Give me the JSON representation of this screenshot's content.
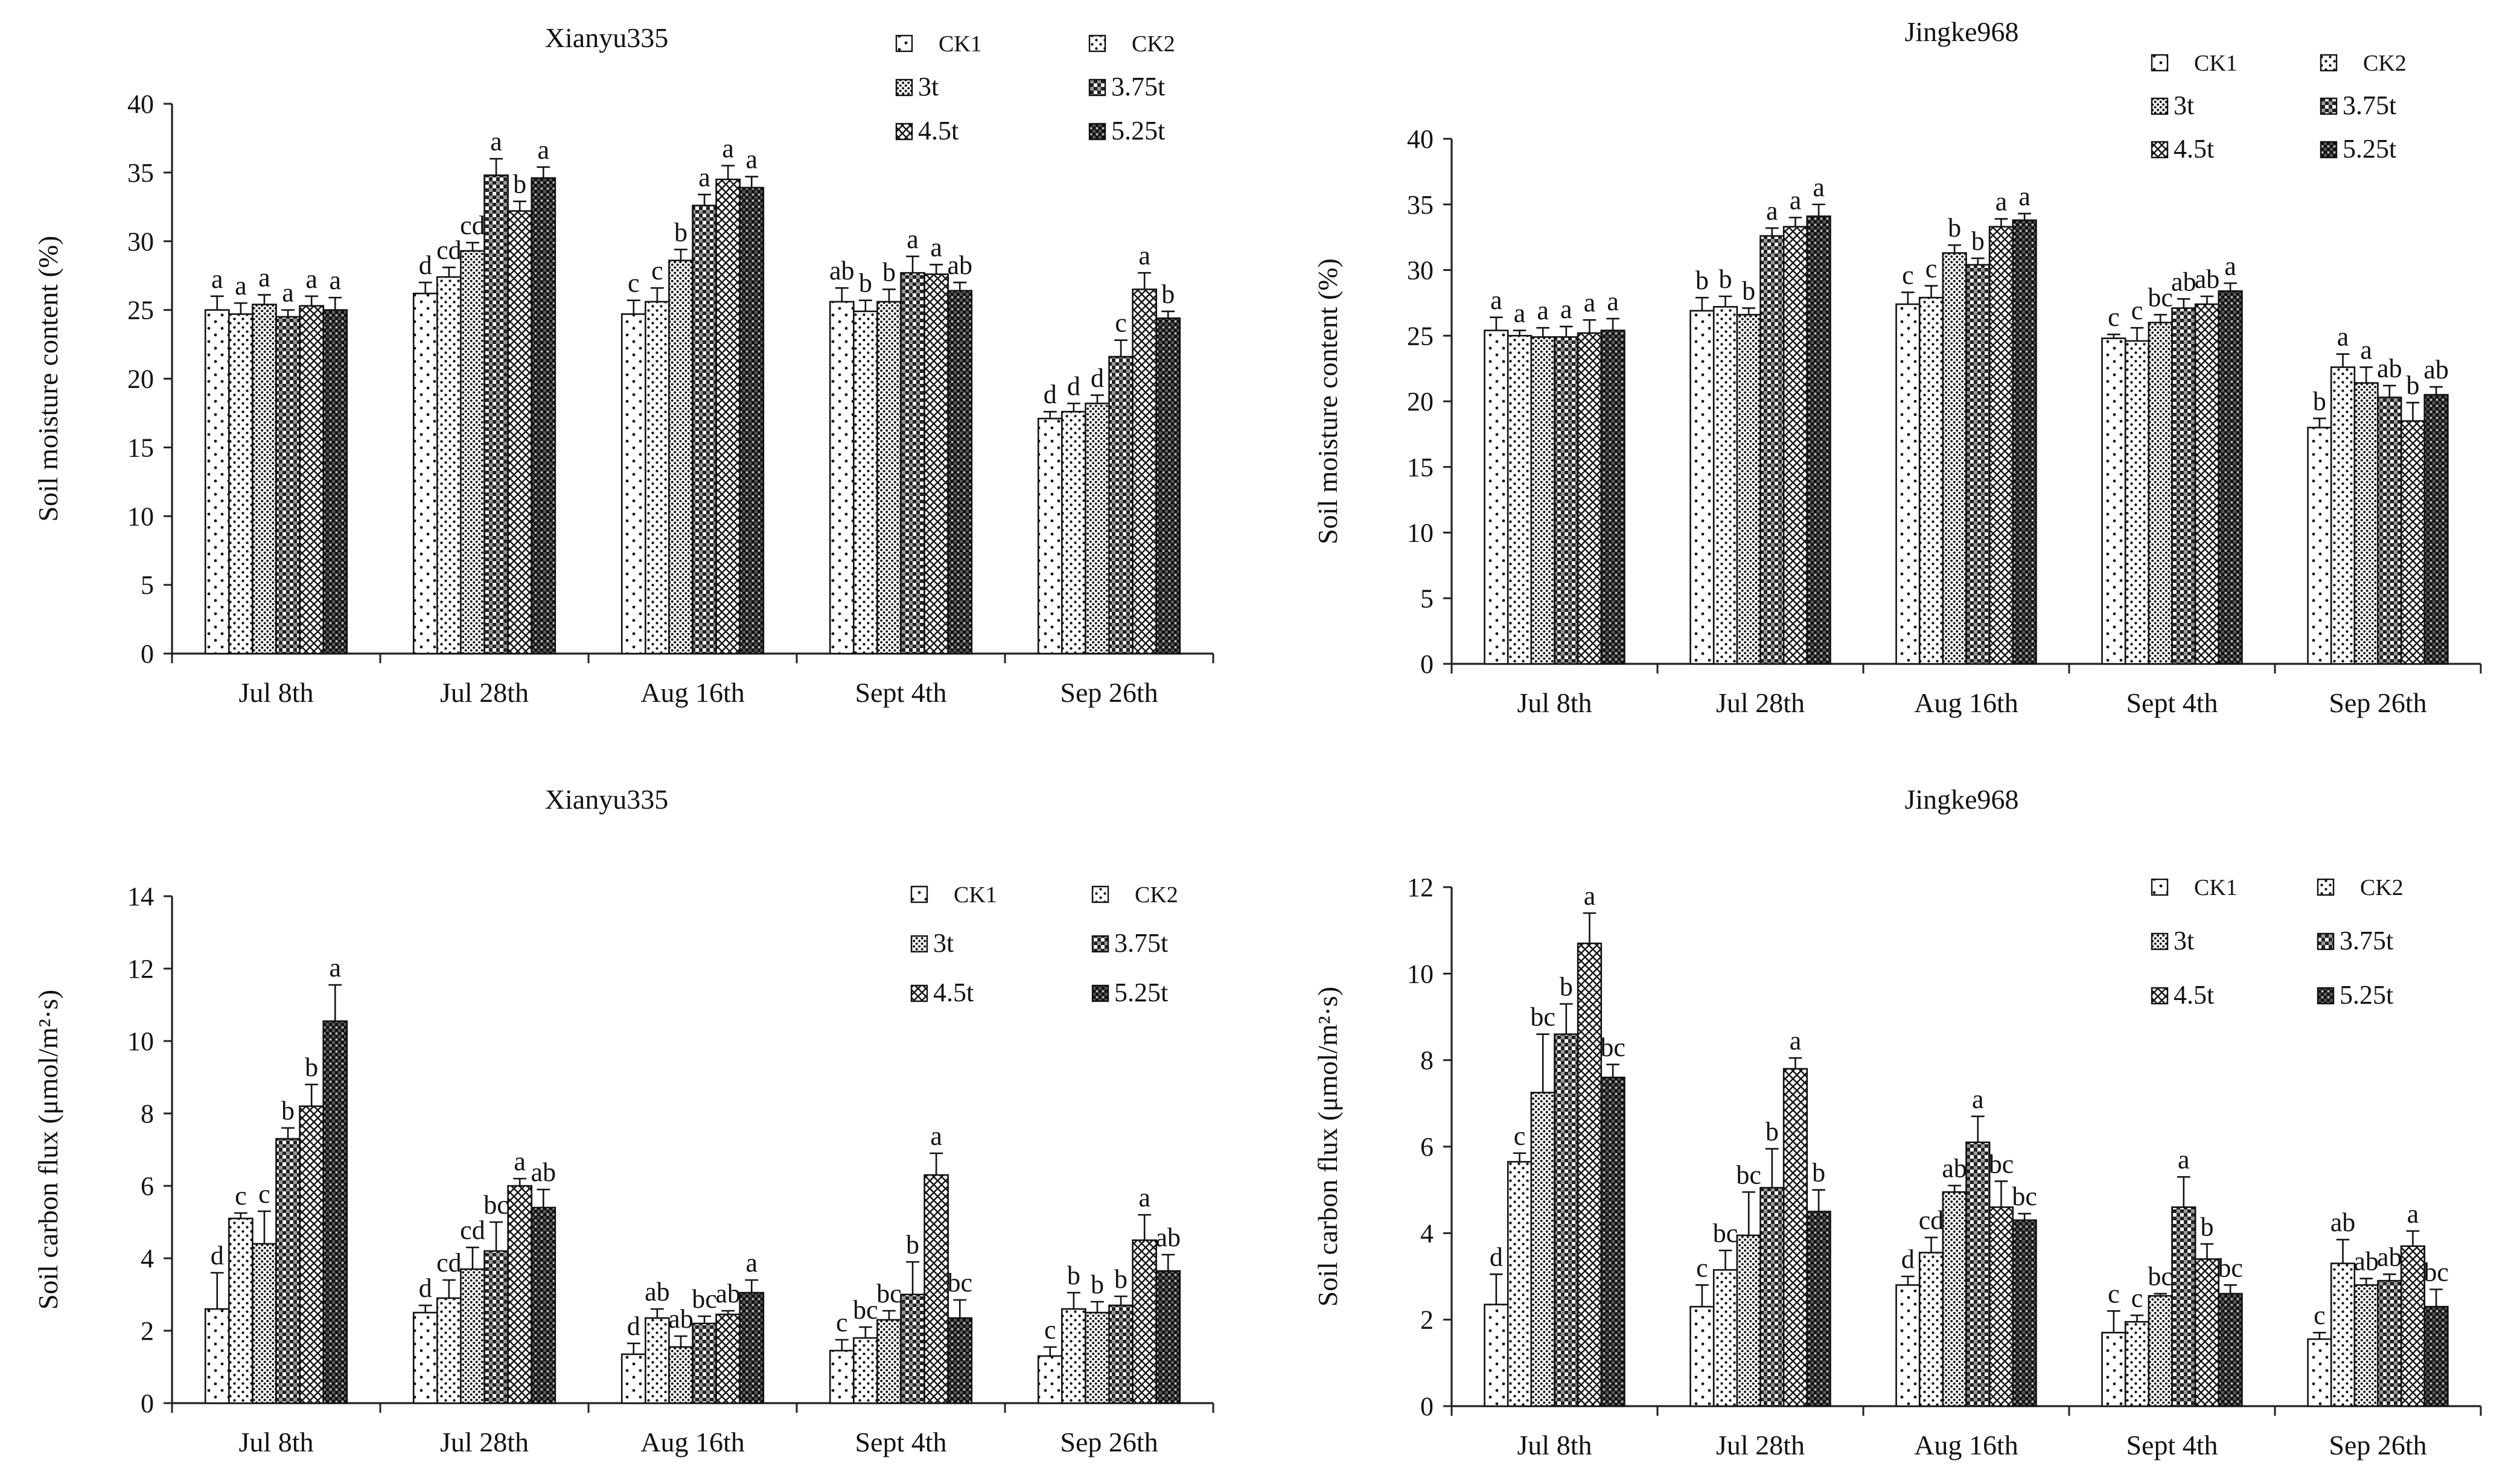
{
  "figure": {
    "patterns": {
      "CK1": "dots-sparse",
      "CK2": "dots-medium",
      "3t": "dots-dense",
      "3.75t": "checker",
      "4.5t": "crosshatch",
      "5.25t": "dark-checker"
    },
    "colors": {
      "ink": "#111111",
      "background": "#ffffff"
    }
  },
  "chart_data": [
    {
      "id": "xianyu-moisture",
      "type": "bar",
      "title": "Xianyu335",
      "xlabel": "",
      "ylabel": "Soil moisture content (%)",
      "ylim": [
        0,
        40
      ],
      "yticks": [
        0,
        5,
        10,
        15,
        20,
        25,
        30,
        35,
        40
      ],
      "categories": [
        "Jul 8th",
        "Jul 28th",
        "Aug 16th",
        "Sept 4th",
        "Sep 26th"
      ],
      "legend": {
        "position": "top-right",
        "labels": [
          "CK1",
          "CK2",
          "3t",
          "3.75t",
          "4.5t",
          "5.25t"
        ]
      },
      "series": [
        {
          "name": "CK1",
          "values": [
            25.0,
            26.2,
            24.7,
            25.6,
            17.1
          ],
          "errors": [
            1.0,
            0.8,
            1.0,
            1.0,
            0.5
          ],
          "letters": [
            "a",
            "d",
            "c",
            "ab",
            "d"
          ]
        },
        {
          "name": "CK2",
          "values": [
            24.7,
            27.4,
            25.6,
            24.9,
            17.6
          ],
          "errors": [
            0.8,
            0.7,
            1.0,
            0.8,
            0.6
          ],
          "letters": [
            "a",
            "cd",
            "c",
            "b",
            "d"
          ]
        },
        {
          "name": "3t",
          "values": [
            25.4,
            29.3,
            28.6,
            25.6,
            18.2
          ],
          "errors": [
            0.7,
            0.6,
            0.8,
            0.9,
            0.6
          ],
          "letters": [
            "a",
            "cd",
            "b",
            "b",
            "d"
          ]
        },
        {
          "name": "3.75t",
          "values": [
            24.5,
            34.8,
            32.6,
            27.7,
            21.6
          ],
          "errors": [
            0.5,
            1.2,
            0.8,
            1.2,
            1.2
          ],
          "letters": [
            "a",
            "a",
            "a",
            "a",
            "c"
          ]
        },
        {
          "name": "4.5t",
          "values": [
            25.3,
            32.2,
            34.5,
            27.6,
            26.5
          ],
          "errors": [
            0.7,
            0.7,
            1.0,
            0.7,
            1.2
          ],
          "letters": [
            "a",
            "b",
            "a",
            "a",
            "a"
          ]
        },
        {
          "name": "5.25t",
          "values": [
            25.0,
            34.6,
            33.9,
            26.4,
            24.4
          ],
          "errors": [
            0.9,
            0.8,
            0.8,
            0.6,
            0.5
          ],
          "letters": [
            "a",
            "a",
            "a",
            "ab",
            "b"
          ]
        }
      ]
    },
    {
      "id": "jingke-moisture",
      "type": "bar",
      "title": "Jingke968",
      "xlabel": "",
      "ylabel": "Soil moisture content (%)",
      "ylim": [
        0,
        40
      ],
      "yticks": [
        0,
        5,
        10,
        15,
        20,
        25,
        30,
        35,
        40
      ],
      "categories": [
        "Jul 8th",
        "Jul 28th",
        "Aug 16th",
        "Sept 4th",
        "Sep 26th"
      ],
      "legend": {
        "position": "top-right",
        "labels": [
          "CK1",
          "CK2",
          "3t",
          "3.75t",
          "4.5t",
          "5.25t"
        ]
      },
      "series": [
        {
          "name": "CK1",
          "values": [
            25.4,
            26.9,
            27.4,
            24.8,
            18.0
          ],
          "errors": [
            1.0,
            1.0,
            0.9,
            0.3,
            0.7
          ],
          "letters": [
            "a",
            "b",
            "c",
            "c",
            "b"
          ]
        },
        {
          "name": "CK2",
          "values": [
            25.0,
            27.2,
            27.9,
            24.6,
            22.6
          ],
          "errors": [
            0.4,
            0.8,
            0.9,
            1.0,
            1.0
          ],
          "letters": [
            "a",
            "b",
            "c",
            "c",
            "a"
          ]
        },
        {
          "name": "3t",
          "values": [
            24.9,
            26.6,
            31.3,
            26.0,
            21.4
          ],
          "errors": [
            0.7,
            0.5,
            0.6,
            0.6,
            1.2
          ],
          "letters": [
            "a",
            "b",
            "b",
            "bc",
            "a"
          ]
        },
        {
          "name": "3.75t",
          "values": [
            24.9,
            32.6,
            30.4,
            27.1,
            20.3
          ],
          "errors": [
            0.8,
            0.6,
            0.5,
            0.7,
            0.9
          ],
          "letters": [
            "a",
            "a",
            "b",
            "ab",
            "ab"
          ]
        },
        {
          "name": "4.5t",
          "values": [
            25.2,
            33.3,
            33.3,
            27.4,
            18.5
          ],
          "errors": [
            1.0,
            0.7,
            0.6,
            0.6,
            1.4
          ],
          "letters": [
            "a",
            "a",
            "a",
            "ab",
            "b"
          ]
        },
        {
          "name": "5.25t",
          "values": [
            25.4,
            34.1,
            33.8,
            28.4,
            20.5
          ],
          "errors": [
            0.9,
            0.9,
            0.5,
            0.6,
            0.6
          ],
          "letters": [
            "a",
            "a",
            "a",
            "a",
            "ab"
          ]
        }
      ]
    },
    {
      "id": "xianyu-flux",
      "type": "bar",
      "title": "Xianyu335",
      "xlabel": "",
      "ylabel": "Soil carbon flux (μmol/m²·s)",
      "ylim": [
        0,
        14
      ],
      "yticks": [
        0,
        2,
        4,
        6,
        8,
        10,
        12,
        14
      ],
      "categories": [
        "Jul 8th",
        "Jul 28th",
        "Aug 16th",
        "Sept 4th",
        "Sep 26th"
      ],
      "legend": {
        "position": "top-right",
        "labels": [
          "CK1",
          "CK2",
          "3t",
          "3.75t",
          "4.5t",
          "5.25t"
        ]
      },
      "series": [
        {
          "name": "CK1",
          "values": [
            2.6,
            2.5,
            1.35,
            1.45,
            1.3
          ],
          "errors": [
            1.0,
            0.2,
            0.3,
            0.3,
            0.25
          ],
          "letters": [
            "d",
            "d",
            "d",
            "c",
            "c"
          ]
        },
        {
          "name": "CK2",
          "values": [
            5.1,
            2.9,
            2.35,
            1.8,
            2.6
          ],
          "errors": [
            0.15,
            0.5,
            0.25,
            0.3,
            0.45
          ],
          "letters": [
            "c",
            "cd",
            "ab",
            "bc",
            "b"
          ]
        },
        {
          "name": "3t",
          "values": [
            4.4,
            3.7,
            1.55,
            2.3,
            2.5
          ],
          "errors": [
            0.9,
            0.6,
            0.3,
            0.25,
            0.3
          ],
          "letters": [
            "c",
            "cd",
            "ab",
            "bc",
            "b"
          ]
        },
        {
          "name": "3.75t",
          "values": [
            7.3,
            4.2,
            2.2,
            3.0,
            2.7
          ],
          "errors": [
            0.3,
            0.8,
            0.2,
            0.9,
            0.25
          ],
          "letters": [
            "b",
            "bc",
            "bc",
            "b",
            "b"
          ]
        },
        {
          "name": "4.5t",
          "values": [
            8.2,
            6.0,
            2.45,
            6.3,
            4.5
          ],
          "errors": [
            0.6,
            0.2,
            0.1,
            0.6,
            0.7
          ],
          "letters": [
            "b",
            "a",
            "ab",
            "a",
            "a"
          ]
        },
        {
          "name": "5.25t",
          "values": [
            10.55,
            5.4,
            3.05,
            2.35,
            3.65
          ],
          "errors": [
            1.0,
            0.5,
            0.35,
            0.5,
            0.45
          ],
          "letters": [
            "a",
            "ab",
            "a",
            "bc",
            "ab"
          ]
        }
      ]
    },
    {
      "id": "jingke-flux",
      "type": "bar",
      "title": "Jingke968",
      "xlabel": "",
      "ylabel": "Soil carbon flux (μmol/m²·s)",
      "ylim": [
        0,
        12
      ],
      "yticks": [
        0,
        2,
        4,
        6,
        8,
        10,
        12
      ],
      "categories": [
        "Jul 8th",
        "Jul 28th",
        "Aug 16th",
        "Sept 4th",
        "Sep 26th"
      ],
      "legend": {
        "position": "top-right",
        "labels": [
          "CK1",
          "CK2",
          "3t",
          "3.75t",
          "4.5t",
          "5.25t"
        ]
      },
      "series": [
        {
          "name": "CK1",
          "values": [
            2.35,
            2.3,
            2.8,
            1.7,
            1.55
          ],
          "errors": [
            0.7,
            0.5,
            0.2,
            0.5,
            0.15
          ],
          "letters": [
            "d",
            "c",
            "d",
            "c",
            "c"
          ]
        },
        {
          "name": "CK2",
          "values": [
            5.65,
            3.15,
            3.55,
            1.95,
            3.3
          ],
          "errors": [
            0.2,
            0.45,
            0.35,
            0.15,
            0.55
          ],
          "letters": [
            "c",
            "bc",
            "cd",
            "c",
            "ab"
          ]
        },
        {
          "name": "3t",
          "values": [
            7.25,
            3.95,
            4.95,
            2.55,
            2.8
          ],
          "errors": [
            1.35,
            1.0,
            0.15,
            0.05,
            0.15
          ],
          "letters": [
            "bc",
            "bc",
            "ab",
            "bc",
            "ab"
          ]
        },
        {
          "name": "3.75t",
          "values": [
            8.6,
            5.05,
            6.1,
            4.6,
            2.9
          ],
          "errors": [
            0.7,
            0.9,
            0.6,
            0.7,
            0.15
          ],
          "letters": [
            "b",
            "b",
            "a",
            "a",
            "ab"
          ]
        },
        {
          "name": "4.5t",
          "values": [
            10.7,
            7.8,
            4.6,
            3.4,
            3.7
          ],
          "errors": [
            0.7,
            0.25,
            0.6,
            0.35,
            0.35
          ],
          "letters": [
            "a",
            "a",
            "bc",
            "b",
            "a"
          ]
        },
        {
          "name": "5.25t",
          "values": [
            7.6,
            4.5,
            4.3,
            2.6,
            2.3
          ],
          "errors": [
            0.3,
            0.5,
            0.15,
            0.2,
            0.4
          ],
          "letters": [
            "bc",
            "b",
            "bc",
            "bc",
            "bc"
          ]
        }
      ]
    }
  ]
}
